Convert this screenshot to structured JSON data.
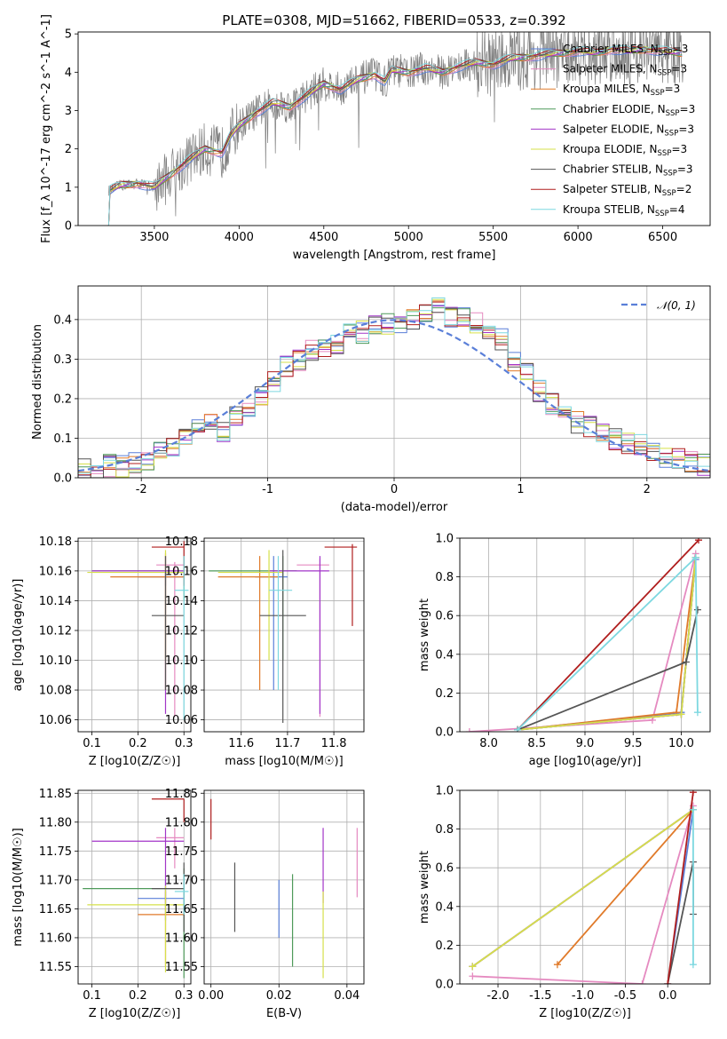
{
  "figure": {
    "title": "PLATE=0308, MJD=51662, FIBERID=0533, z=0.392"
  },
  "legend": {
    "panel1": [
      {
        "label": "Chabrier MILES, N",
        "sub": "SSP",
        "suffix": "=3",
        "color": "#5a7fd8"
      },
      {
        "label": "Salpeter MILES, N",
        "sub": "SSP",
        "suffix": "=3",
        "color": "#e58ac0"
      },
      {
        "label": "Kroupa MILES, N",
        "sub": "SSP",
        "suffix": "=3",
        "color": "#e07a2a"
      },
      {
        "label": "Chabrier ELODIE, N",
        "sub": "SSP",
        "suffix": "=3",
        "color": "#4f9a5a"
      },
      {
        "label": "Salpeter ELODIE, N",
        "sub": "SSP",
        "suffix": "=3",
        "color": "#a235c8"
      },
      {
        "label": "Kroupa ELODIE, N",
        "sub": "SSP",
        "suffix": "=3",
        "color": "#d6e04a"
      },
      {
        "label": "Chabrier STELIB, N",
        "sub": "SSP",
        "suffix": "=3",
        "color": "#555555"
      },
      {
        "label": "Salpeter STELIB, N",
        "sub": "SSP",
        "suffix": "=2",
        "color": "#b01e1e"
      },
      {
        "label": "Kroupa STELIB, N",
        "sub": "SSP",
        "suffix": "=4",
        "color": "#7dd8e0"
      }
    ],
    "panel2": {
      "label": "𝒩(0, 1)",
      "color": "#5a7fd8"
    }
  },
  "chart_data": [
    {
      "type": "line",
      "title": "PLATE=0308, MJD=51662, FIBERID=0533, z=0.392",
      "xlabel": "wavelength [Angstrom, rest frame]",
      "ylabel": "Flux [f_λ 10^-17 erg cm^-2 s^-1 A^-1]",
      "xlim": [
        3050,
        6780
      ],
      "ylim": [
        0,
        5.05
      ],
      "xticks": [
        3500,
        4000,
        4500,
        5000,
        5500,
        6000,
        6500
      ],
      "yticks": [
        0,
        1,
        2,
        3,
        4,
        5
      ],
      "model_x": [
        3210,
        3230,
        3300,
        3400,
        3500,
        3600,
        3700,
        3800,
        3900,
        3950,
        4000,
        4100,
        4200,
        4300,
        4400,
        4500,
        4600,
        4700,
        4800,
        4860,
        4900,
        5000,
        5100,
        5200,
        5300,
        5400,
        5500,
        5600,
        5700,
        5800,
        5900,
        6000,
        6100,
        6200,
        6300,
        6400,
        6500,
        6600
      ],
      "model_y": [
        0,
        0.9,
        1.05,
        1.1,
        1.0,
        1.35,
        1.7,
        2.0,
        1.9,
        2.35,
        2.6,
        2.95,
        3.2,
        3.1,
        3.4,
        3.7,
        3.55,
        3.8,
        3.95,
        3.75,
        4.05,
        4.0,
        4.1,
        4.0,
        4.15,
        4.25,
        4.2,
        4.35,
        4.4,
        4.45,
        4.5,
        4.55,
        4.5,
        4.6,
        4.55,
        4.6,
        4.55,
        4.5
      ],
      "data_series": "observed spectrum (gray, noisy)"
    },
    {
      "type": "line",
      "xlabel": "(data-model)/error",
      "ylabel": "Normed distribution",
      "xlim": [
        -2.5,
        2.5
      ],
      "ylim": [
        0,
        0.485
      ],
      "xticks": [
        -2,
        -1,
        0,
        1,
        2
      ],
      "yticks": [
        0.0,
        0.1,
        0.2,
        0.3,
        0.4
      ],
      "histogram_bins": [
        -2.5,
        -2.4,
        -2.3,
        -2.2,
        -2.1,
        -2.0,
        -1.9,
        -1.8,
        -1.7,
        -1.6,
        -1.5,
        -1.4,
        -1.3,
        -1.2,
        -1.1,
        -1.0,
        -0.9,
        -0.8,
        -0.7,
        -0.6,
        -0.5,
        -0.4,
        -0.3,
        -0.2,
        -0.1,
        0.0,
        0.1,
        0.2,
        0.3,
        0.4,
        0.5,
        0.6,
        0.7,
        0.8,
        0.9,
        1.0,
        1.1,
        1.2,
        1.3,
        1.4,
        1.5,
        1.6,
        1.7,
        1.8,
        1.9,
        2.0,
        2.1,
        2.2,
        2.3,
        2.4
      ],
      "histogram_values": [
        0.02,
        0.01,
        0.03,
        0.03,
        0.04,
        0.04,
        0.06,
        0.08,
        0.1,
        0.12,
        0.14,
        0.12,
        0.16,
        0.18,
        0.2,
        0.24,
        0.28,
        0.3,
        0.32,
        0.33,
        0.34,
        0.36,
        0.37,
        0.38,
        0.39,
        0.38,
        0.4,
        0.42,
        0.43,
        0.41,
        0.4,
        0.39,
        0.36,
        0.35,
        0.3,
        0.26,
        0.22,
        0.19,
        0.17,
        0.14,
        0.13,
        0.12,
        0.1,
        0.09,
        0.08,
        0.07,
        0.05,
        0.05,
        0.04,
        0.03
      ],
      "gaussian": "N(0,1)"
    },
    {
      "type": "scatter",
      "xlabel": "Z [log10(Z/Z☉)]",
      "ylabel": "age [log10(age/yr)]",
      "xlim": [
        0.07,
        0.315
      ],
      "ylim": [
        10.052,
        10.182
      ],
      "xticks": [
        0.1,
        0.2,
        0.3
      ],
      "yticks": [
        10.06,
        10.08,
        10.1,
        10.12,
        10.14,
        10.16,
        10.18
      ],
      "points": [
        {
          "series": "Chabrier MILES",
          "x": 0.26,
          "y": 10.156,
          "xerr": [
            0.2,
            0.3
          ],
          "yerr": [
            10.15,
            10.16
          ]
        },
        {
          "series": "Salpeter MILES",
          "x": 0.28,
          "y": 10.164,
          "xerr": [
            0.24,
            0.3
          ],
          "yerr": [
            10.062,
            10.166
          ]
        },
        {
          "series": "Kroupa MILES",
          "x": 0.26,
          "y": 10.156,
          "xerr": [
            0.14,
            0.3
          ],
          "yerr": [
            10.08,
            10.172
          ]
        },
        {
          "series": "Chabrier ELODIE",
          "x": 0.3,
          "y": 10.16,
          "xerr": [
            0.1,
            0.3
          ],
          "yerr": [
            10.14,
            10.17
          ]
        },
        {
          "series": "Salpeter ELODIE",
          "x": 0.26,
          "y": 10.16,
          "xerr": [
            0.1,
            0.3
          ],
          "yerr": [
            10.064,
            10.17
          ]
        },
        {
          "series": "Kroupa ELODIE",
          "x": 0.26,
          "y": 10.159,
          "xerr": [
            0.09,
            0.3
          ],
          "yerr": [
            10.1,
            10.174
          ]
        },
        {
          "series": "Chabrier STELIB",
          "x": 0.26,
          "y": 10.13,
          "xerr": [
            0.23,
            0.3
          ],
          "yerr": [
            10.08,
            10.17
          ]
        },
        {
          "series": "Salpeter STELIB",
          "x": 0.3,
          "y": 10.176,
          "xerr": [
            0.23,
            0.3
          ],
          "yerr": [
            10.15,
            10.18
          ]
        },
        {
          "series": "Kroupa STELIB",
          "x": 0.3,
          "y": 10.147,
          "xerr": [
            0.28,
            0.31
          ],
          "yerr": [
            10.06,
            10.17
          ]
        }
      ]
    },
    {
      "type": "scatter",
      "xlabel": "mass [log10(M/M☉)]",
      "ylabel": "",
      "xlim": [
        11.52,
        11.865
      ],
      "ylim": [
        10.052,
        10.182
      ],
      "xticks": [
        11.6,
        11.7,
        11.8
      ],
      "yticks": [
        10.06,
        10.08,
        10.1,
        10.12,
        10.14,
        10.16,
        10.18
      ],
      "points": [
        {
          "series": "Chabrier MILES",
          "x": 11.67,
          "y": 10.156,
          "xerr": [
            11.63,
            11.7
          ],
          "yerr": [
            10.08,
            10.17
          ]
        },
        {
          "series": "Salpeter MILES",
          "x": 11.77,
          "y": 10.164,
          "xerr": [
            11.72,
            11.79
          ],
          "yerr": [
            10.062,
            10.168
          ]
        },
        {
          "series": "Kroupa MILES",
          "x": 11.64,
          "y": 10.156,
          "xerr": [
            11.55,
            11.68
          ],
          "yerr": [
            10.08,
            10.17
          ]
        },
        {
          "series": "Chabrier ELODIE",
          "x": 11.69,
          "y": 10.16,
          "xerr": [
            11.53,
            11.72
          ],
          "yerr": [
            10.1,
            10.17
          ]
        },
        {
          "series": "Salpeter ELODIE",
          "x": 11.77,
          "y": 10.16,
          "xerr": [
            11.66,
            11.79
          ],
          "yerr": [
            10.064,
            10.17
          ]
        },
        {
          "series": "Kroupa ELODIE",
          "x": 11.66,
          "y": 10.159,
          "xerr": [
            11.55,
            11.69
          ],
          "yerr": [
            10.1,
            10.174
          ]
        },
        {
          "series": "Chabrier STELIB",
          "x": 11.69,
          "y": 10.13,
          "xerr": [
            11.64,
            11.74
          ],
          "yerr": [
            10.058,
            10.174
          ]
        },
        {
          "series": "Salpeter STELIB",
          "x": 11.84,
          "y": 10.176,
          "xerr": [
            11.78,
            11.85
          ],
          "yerr": [
            10.123,
            10.178
          ]
        },
        {
          "series": "Kroupa STELIB",
          "x": 11.68,
          "y": 10.147,
          "xerr": [
            11.66,
            11.71
          ],
          "yerr": [
            10.08,
            10.17
          ]
        }
      ]
    },
    {
      "type": "line",
      "xlabel": "age [log10(age/yr)]",
      "ylabel": "mass weight",
      "xlim": [
        7.7,
        10.3
      ],
      "ylim": [
        0,
        1.0
      ],
      "xticks": [
        8.0,
        8.5,
        9.0,
        9.5,
        10.0
      ],
      "yticks": [
        0.0,
        0.2,
        0.4,
        0.6,
        0.8,
        1.0
      ],
      "series": [
        {
          "name": "Chabrier MILES",
          "x": [
            8.3,
            10.0,
            10.15
          ],
          "y": [
            0.01,
            0.1,
            0.89
          ]
        },
        {
          "name": "Salpeter MILES",
          "x": [
            7.8,
            9.7,
            10.15
          ],
          "y": [
            0.0,
            0.06,
            0.92
          ]
        },
        {
          "name": "Kroupa MILES",
          "x": [
            8.3,
            9.95,
            10.15
          ],
          "y": [
            0.01,
            0.1,
            0.9
          ]
        },
        {
          "name": "Chabrier ELODIE",
          "x": [
            8.3,
            10.0,
            10.15
          ],
          "y": [
            0.01,
            0.09,
            0.9
          ]
        },
        {
          "name": "Salpeter ELODIE",
          "x": [
            8.3,
            10.0,
            10.15
          ],
          "y": [
            0.01,
            0.09,
            0.9
          ]
        },
        {
          "name": "Kroupa ELODIE",
          "x": [
            8.3,
            10.0,
            10.15
          ],
          "y": [
            0.01,
            0.09,
            0.9
          ]
        },
        {
          "name": "Chabrier STELIB",
          "x": [
            8.3,
            10.05,
            10.17
          ],
          "y": [
            0.01,
            0.36,
            0.63
          ]
        },
        {
          "name": "Salpeter STELIB",
          "x": [
            8.3,
            10.18
          ],
          "y": [
            0.01,
            0.99
          ]
        },
        {
          "name": "Kroupa STELIB",
          "x": [
            8.3,
            10.15,
            10.17
          ],
          "y": [
            0.01,
            0.9,
            0.1
          ]
        }
      ]
    },
    {
      "type": "scatter",
      "xlabel": "Z [log10(Z/Z☉)]",
      "ylabel": "mass [log10(M/M☉)]",
      "xlim": [
        0.07,
        0.315
      ],
      "ylim": [
        11.52,
        11.855
      ],
      "xticks": [
        0.1,
        0.2,
        0.3
      ],
      "yticks": [
        11.55,
        11.6,
        11.65,
        11.7,
        11.75,
        11.8,
        11.85
      ],
      "points": [
        {
          "series": "Chabrier MILES",
          "x": 0.26,
          "y": 11.668,
          "xerr": [
            0.2,
            0.3
          ],
          "yerr": [
            11.63,
            11.7
          ]
        },
        {
          "series": "Salpeter MILES",
          "x": 0.28,
          "y": 11.773,
          "xerr": [
            0.24,
            0.3
          ],
          "yerr": [
            11.72,
            11.79
          ]
        },
        {
          "series": "Kroupa MILES",
          "x": 0.26,
          "y": 11.64,
          "xerr": [
            0.2,
            0.3
          ],
          "yerr": [
            11.55,
            11.68
          ]
        },
        {
          "series": "Chabrier ELODIE",
          "x": 0.3,
          "y": 11.685,
          "xerr": [
            0.08,
            0.3
          ],
          "yerr": [
            11.53,
            11.72
          ]
        },
        {
          "series": "Salpeter ELODIE",
          "x": 0.26,
          "y": 11.767,
          "xerr": [
            0.1,
            0.3
          ],
          "yerr": [
            11.66,
            11.79
          ]
        },
        {
          "series": "Kroupa ELODIE",
          "x": 0.26,
          "y": 11.657,
          "xerr": [
            0.09,
            0.3
          ],
          "yerr": [
            11.54,
            11.69
          ]
        },
        {
          "series": "Chabrier STELIB",
          "x": 0.3,
          "y": 11.685,
          "xerr": [
            0.23,
            0.3
          ],
          "yerr": [
            11.61,
            11.73
          ]
        },
        {
          "series": "Salpeter STELIB",
          "x": 0.3,
          "y": 11.84,
          "xerr": [
            0.23,
            0.3
          ],
          "yerr": [
            11.8,
            11.84
          ]
        },
        {
          "series": "Kroupa STELIB",
          "x": 0.3,
          "y": 11.68,
          "xerr": [
            0.28,
            0.31
          ],
          "yerr": [
            11.64,
            11.71
          ]
        }
      ]
    },
    {
      "type": "scatter",
      "xlabel": "E(B-V)",
      "ylabel": "",
      "xlim": [
        -0.002,
        0.045
      ],
      "ylim": [
        11.52,
        11.855
      ],
      "xticks": [
        0.0,
        0.02,
        0.04
      ],
      "yticks": [
        11.55,
        11.6,
        11.65,
        11.7,
        11.75,
        11.8,
        11.85
      ],
      "points": [
        {
          "series": "Salpeter STELIB",
          "x": 0.0,
          "y": 11.81,
          "yerr": [
            11.77,
            11.84
          ]
        },
        {
          "series": "Chabrier STELIB",
          "x": 0.007,
          "y": 11.67,
          "yerr": [
            11.61,
            11.73
          ]
        },
        {
          "series": "Chabrier MILES",
          "x": 0.02,
          "y": 11.65,
          "yerr": [
            11.6,
            11.7
          ]
        },
        {
          "series": "Chabrier ELODIE",
          "x": 0.024,
          "y": 11.63,
          "yerr": [
            11.55,
            11.71
          ]
        },
        {
          "series": "Salpeter ELODIE",
          "x": 0.033,
          "y": 11.72,
          "yerr": [
            11.66,
            11.79
          ]
        },
        {
          "series": "Kroupa ELODIE",
          "x": 0.033,
          "y": 11.61,
          "yerr": [
            11.53,
            11.68
          ]
        },
        {
          "series": "Salpeter MILES",
          "x": 0.043,
          "y": 11.73,
          "yerr": [
            11.67,
            11.79
          ]
        }
      ]
    },
    {
      "type": "line",
      "xlabel": "Z [log10(Z/Z☉)]",
      "ylabel": "mass weight",
      "xlim": [
        -2.45,
        0.5
      ],
      "ylim": [
        0,
        1.0
      ],
      "xticks": [
        -2.0,
        -1.5,
        -1.0,
        -0.5,
        0.0
      ],
      "yticks": [
        0.0,
        0.2,
        0.4,
        0.6,
        0.8,
        1.0
      ],
      "series": [
        {
          "name": "Chabrier MILES",
          "x": [
            0.0,
            0.3
          ],
          "y": [
            0.0,
            0.9
          ]
        },
        {
          "name": "Salpeter MILES",
          "x": [
            -2.3,
            -0.3,
            0.3
          ],
          "y": [
            0.04,
            0.0,
            0.92
          ]
        },
        {
          "name": "Kroupa MILES",
          "x": [
            -1.3,
            0.3
          ],
          "y": [
            0.1,
            0.9
          ]
        },
        {
          "name": "Chabrier ELODIE",
          "x": [
            -2.3,
            0.3
          ],
          "y": [
            0.09,
            0.9
          ]
        },
        {
          "name": "Salpeter ELODIE",
          "x": [
            -2.3,
            0.3
          ],
          "y": [
            0.09,
            0.9
          ]
        },
        {
          "name": "Kroupa ELODIE",
          "x": [
            -2.3,
            0.3
          ],
          "y": [
            0.09,
            0.9
          ]
        },
        {
          "name": "Chabrier STELIB",
          "x": [
            0.0,
            0.3,
            0.3
          ],
          "y": [
            0.0,
            0.63,
            0.36
          ]
        },
        {
          "name": "Salpeter STELIB",
          "x": [
            0.0,
            0.3
          ],
          "y": [
            0.0,
            0.99
          ]
        },
        {
          "name": "Kroupa STELIB",
          "x": [
            0.3,
            0.3
          ],
          "y": [
            0.1,
            0.9
          ]
        }
      ]
    }
  ],
  "colors": {
    "grid": "#b0b0b0",
    "spectrum": "#7f7f7f"
  }
}
